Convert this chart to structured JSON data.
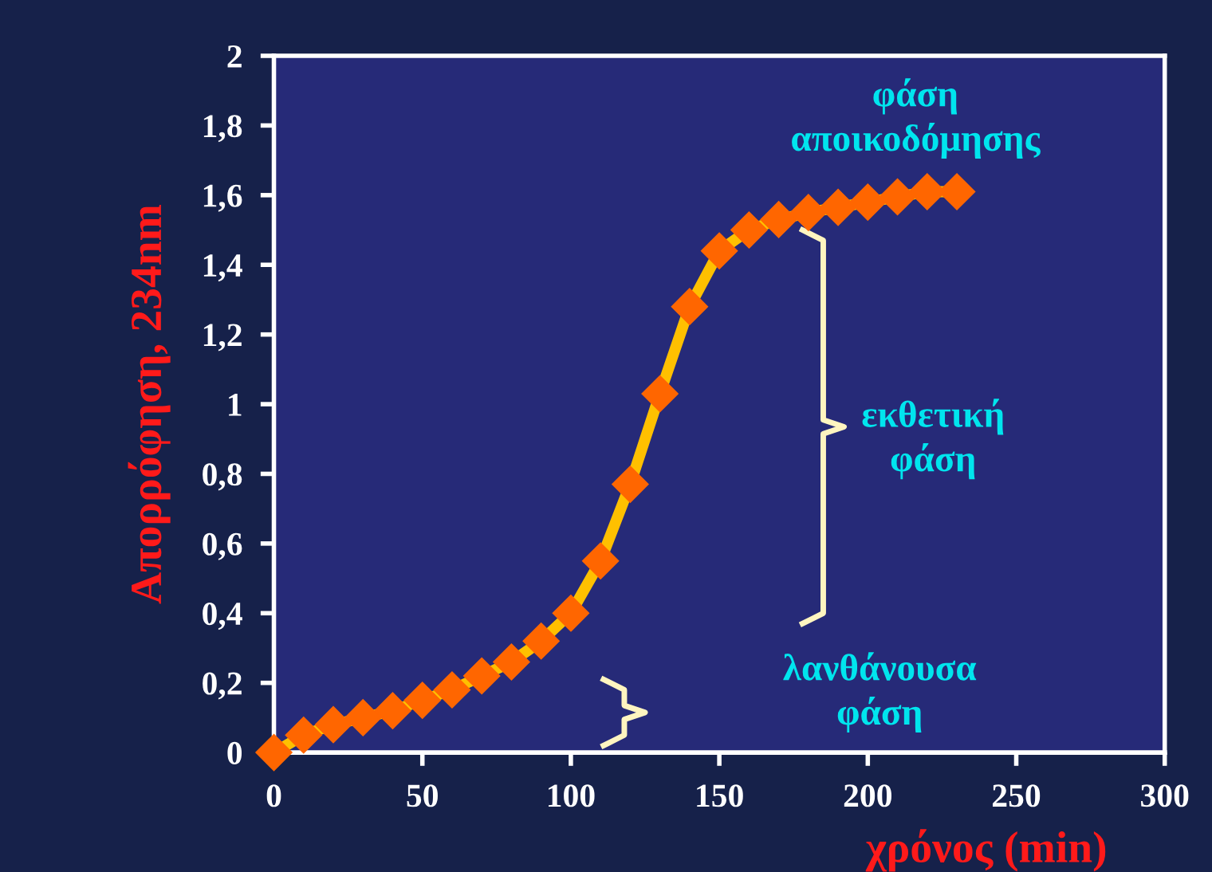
{
  "chart_data": {
    "type": "line",
    "xlabel": "χρόνος (min)",
    "ylabel": "Απορρόφηση, 234nm",
    "x": [
      0,
      10,
      20,
      30,
      40,
      50,
      60,
      70,
      80,
      90,
      100,
      110,
      120,
      130,
      140,
      150,
      160,
      170,
      180,
      190,
      200,
      210,
      220,
      230
    ],
    "series": [
      {
        "color": "#ffc000",
        "values": [
          0,
          0.05,
          0.08,
          0.1,
          0.12,
          0.15,
          0.18,
          0.22,
          0.26,
          0.32,
          0.4,
          0.55,
          0.77,
          1.03,
          1.28,
          1.44,
          1.5,
          1.53,
          1.55,
          1.565,
          1.58,
          1.595,
          1.61,
          1.61
        ]
      }
    ],
    "marker": "diamond",
    "line_style": "solid",
    "grid": false,
    "legend": false,
    "xlim": [
      0,
      300
    ],
    "xticks": [
      0,
      50,
      100,
      150,
      200,
      250,
      300
    ],
    "ylim": [
      0,
      2
    ],
    "yticks": [
      {
        "value": 0,
        "label": "0"
      },
      {
        "value": 0.2,
        "label": "0,2"
      },
      {
        "value": 0.4,
        "label": "0,4"
      },
      {
        "value": 0.6,
        "label": "0,6"
      },
      {
        "value": 0.8,
        "label": "0,8"
      },
      {
        "value": 1,
        "label": "1"
      },
      {
        "value": 1.2,
        "label": "1,2"
      },
      {
        "value": 1.4,
        "label": "1,4"
      },
      {
        "value": 1.6,
        "label": "1,6"
      },
      {
        "value": 1.8,
        "label": "1,8"
      },
      {
        "value": 2,
        "label": "2"
      }
    ],
    "annotations": [
      "φάση\nαποικοδόμησης",
      "εκθετική\nφάση",
      "λανθάνουσα\nφάση"
    ]
  }
}
